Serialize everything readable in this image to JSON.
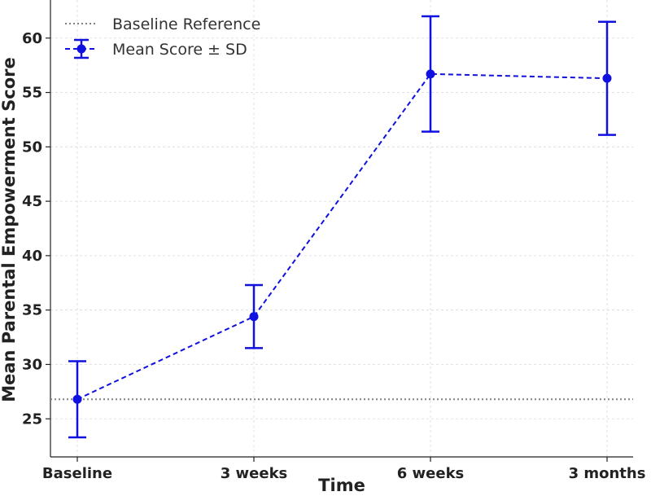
{
  "chart_data": {
    "type": "line",
    "title": "",
    "xlabel": "Time",
    "ylabel": "Mean Parental Empowerment Score",
    "categories": [
      "Baseline",
      "3 weeks",
      "6 weeks",
      "3 months"
    ],
    "series": [
      {
        "name": "Mean Score ± SD",
        "values": [
          26.8,
          34.4,
          56.7,
          56.3
        ],
        "sd": [
          3.5,
          2.9,
          5.3,
          5.2
        ],
        "color": "#1010e0",
        "line_style": "dashed",
        "marker": "circle"
      }
    ],
    "reference_lines": [
      {
        "name": "Baseline Reference",
        "value": 26.8,
        "color": "#808080",
        "line_style": "dotted"
      }
    ],
    "ylim": [
      21.5,
      63.5
    ],
    "yticks": [
      25,
      30,
      35,
      40,
      45,
      50,
      55,
      60
    ],
    "grid": true,
    "legend_position": "top-left"
  }
}
